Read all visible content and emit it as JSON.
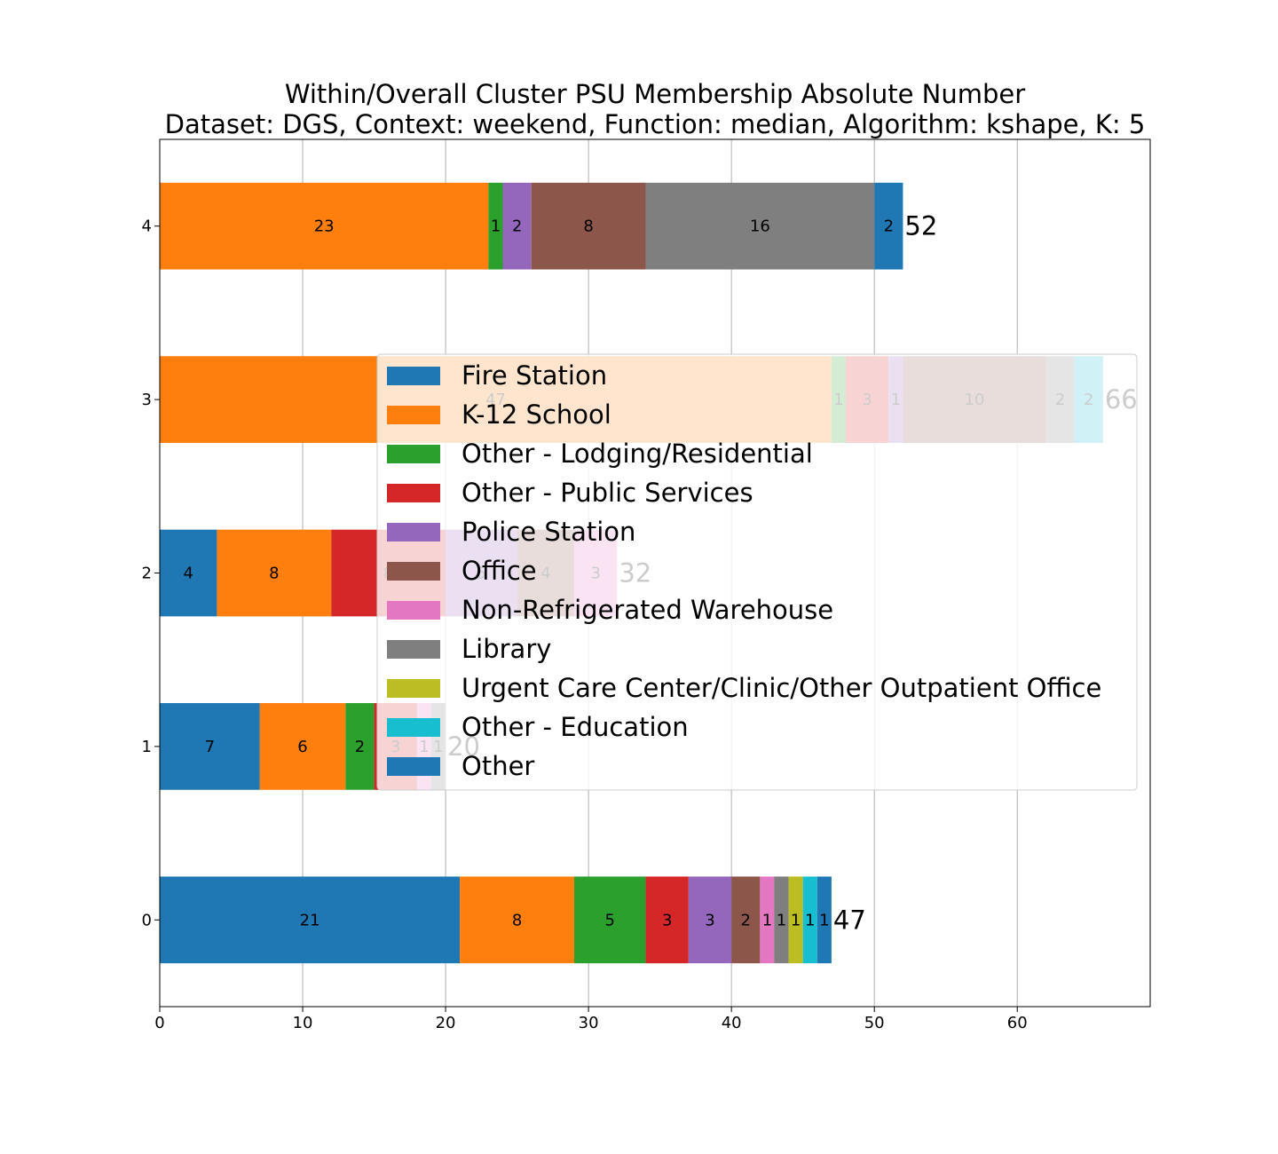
{
  "chart_data": {
    "type": "bar",
    "orientation": "horizontal",
    "stacked": true,
    "title": "Within/Overall Cluster PSU Membership Absolute Number",
    "subtitle": "Dataset: DGS, Context: weekend, Function: median, Algorithm: kshape, K: 5",
    "xlabel": "",
    "ylabel": "",
    "xlim": [
      0,
      69.3
    ],
    "ylim": [
      -0.5,
      4.5
    ],
    "x_ticks": [
      0,
      10,
      20,
      30,
      40,
      50,
      60
    ],
    "categories": [
      "0",
      "1",
      "2",
      "3",
      "4"
    ],
    "grid": {
      "x": true,
      "y": false
    },
    "legend": "center-right",
    "series": [
      {
        "name": "Fire Station",
        "color": "#1f77b4",
        "values": [
          21,
          7,
          4,
          0,
          0
        ]
      },
      {
        "name": "K-12 School",
        "color": "#ff7f0e",
        "values": [
          8,
          6,
          8,
          47,
          23
        ]
      },
      {
        "name": "Other - Lodging/Residential",
        "color": "#2ca02c",
        "values": [
          5,
          2,
          0,
          1,
          1
        ]
      },
      {
        "name": "Other - Public Services",
        "color": "#d62728",
        "values": [
          3,
          3,
          8,
          3,
          0
        ]
      },
      {
        "name": "Police Station",
        "color": "#9467bd",
        "values": [
          3,
          0,
          5,
          1,
          2
        ]
      },
      {
        "name": "Office",
        "color": "#8c564b",
        "values": [
          2,
          0,
          4,
          10,
          8
        ]
      },
      {
        "name": "Non-Refrigerated Warehouse",
        "color": "#e377c2",
        "values": [
          1,
          1,
          3,
          0,
          0
        ]
      },
      {
        "name": "Library",
        "color": "#7f7f7f",
        "values": [
          1,
          1,
          0,
          2,
          16
        ]
      },
      {
        "name": "Urgent Care Center/Clinic/Other Outpatient Office",
        "color": "#bcbd22",
        "values": [
          1,
          0,
          0,
          0,
          0
        ]
      },
      {
        "name": "Other - Education",
        "color": "#17becf",
        "values": [
          1,
          0,
          0,
          2,
          0
        ]
      },
      {
        "name": "Other",
        "color": "#1f77b4",
        "values": [
          1,
          0,
          0,
          0,
          2
        ]
      }
    ],
    "totals": [
      47,
      20,
      32,
      66,
      52
    ]
  }
}
